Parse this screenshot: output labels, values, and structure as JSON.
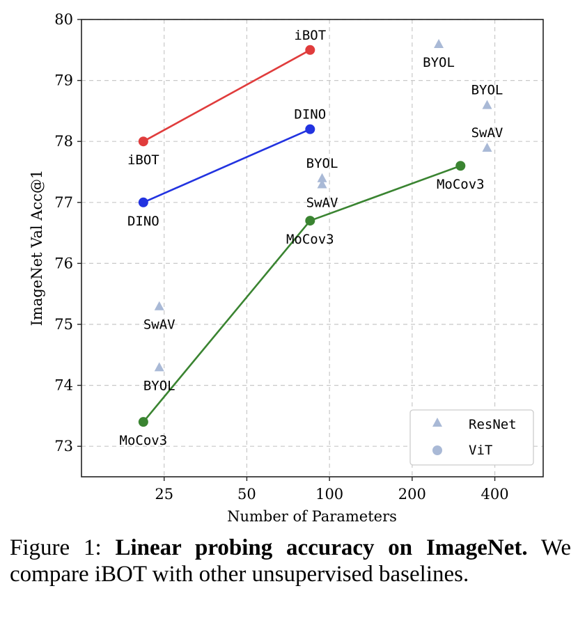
{
  "chart_data": {
    "type": "scatter",
    "xlabel": "Number of Parameters",
    "ylabel": "ImageNet Val Acc@1",
    "xscale": "log",
    "xticks": [
      25,
      50,
      100,
      200,
      400
    ],
    "xlim": [
      12.5,
      600
    ],
    "yticks": [
      73,
      74,
      75,
      76,
      77,
      78,
      79,
      80
    ],
    "ylim": [
      72.5,
      80
    ],
    "grid": true,
    "legend": {
      "placement": "bottom-right",
      "entries": [
        {
          "label": "ResNet",
          "marker": "triangle"
        },
        {
          "label": "ViT",
          "marker": "circle"
        }
      ]
    },
    "series": [
      {
        "name": "iBOT",
        "color": "#e03c3c",
        "marker": "circle",
        "connected": true,
        "points": [
          {
            "x": 21,
            "y": 78.0
          },
          {
            "x": 85,
            "y": 79.5
          }
        ]
      },
      {
        "name": "DINO",
        "color": "#2233e0",
        "marker": "circle",
        "connected": true,
        "points": [
          {
            "x": 21,
            "y": 77.0
          },
          {
            "x": 85,
            "y": 78.2
          }
        ]
      },
      {
        "name": "MoCov3",
        "color": "#3a8431",
        "marker": "circle",
        "connected": true,
        "points": [
          {
            "x": 21,
            "y": 73.4
          },
          {
            "x": 85,
            "y": 76.7
          },
          {
            "x": 300,
            "y": 77.6
          }
        ]
      },
      {
        "name": "ResNet baselines",
        "color": "#a9b9d6",
        "marker": "triangle",
        "connected": false,
        "points": [
          {
            "x": 24,
            "y": 75.3
          },
          {
            "x": 24,
            "y": 74.3
          },
          {
            "x": 94,
            "y": 77.4
          },
          {
            "x": 94,
            "y": 77.3
          },
          {
            "x": 250,
            "y": 79.6
          },
          {
            "x": 375,
            "y": 78.6
          },
          {
            "x": 375,
            "y": 77.9
          }
        ]
      }
    ],
    "annotations": [
      {
        "text": "iBOT",
        "x": 85,
        "y": 79.5,
        "position": "above"
      },
      {
        "text": "iBOT",
        "x": 21,
        "y": 78.0,
        "position": "below"
      },
      {
        "text": "DINO",
        "x": 85,
        "y": 78.2,
        "position": "above"
      },
      {
        "text": "DINO",
        "x": 21,
        "y": 77.0,
        "position": "below"
      },
      {
        "text": "MoCov3",
        "x": 21,
        "y": 73.4,
        "position": "below"
      },
      {
        "text": "MoCov3",
        "x": 85,
        "y": 76.7,
        "position": "below"
      },
      {
        "text": "MoCov3",
        "x": 300,
        "y": 77.6,
        "position": "below"
      },
      {
        "text": "SwAV",
        "x": 24,
        "y": 75.3,
        "position": "below"
      },
      {
        "text": "BYOL",
        "x": 24,
        "y": 74.3,
        "position": "below"
      },
      {
        "text": "BYOL",
        "x": 94,
        "y": 77.4,
        "position": "above"
      },
      {
        "text": "SwAV",
        "x": 94,
        "y": 77.3,
        "position": "below"
      },
      {
        "text": "BYOL",
        "x": 250,
        "y": 79.6,
        "position": "below"
      },
      {
        "text": "BYOL",
        "x": 375,
        "y": 78.6,
        "position": "above"
      },
      {
        "text": "SwAV",
        "x": 375,
        "y": 77.9,
        "position": "above"
      }
    ]
  },
  "caption": {
    "prefix": "Figure 1: ",
    "bold": "Linear probing accuracy on ImageNet.",
    "body": " We compare iBOT with other unsupervised baselines."
  }
}
